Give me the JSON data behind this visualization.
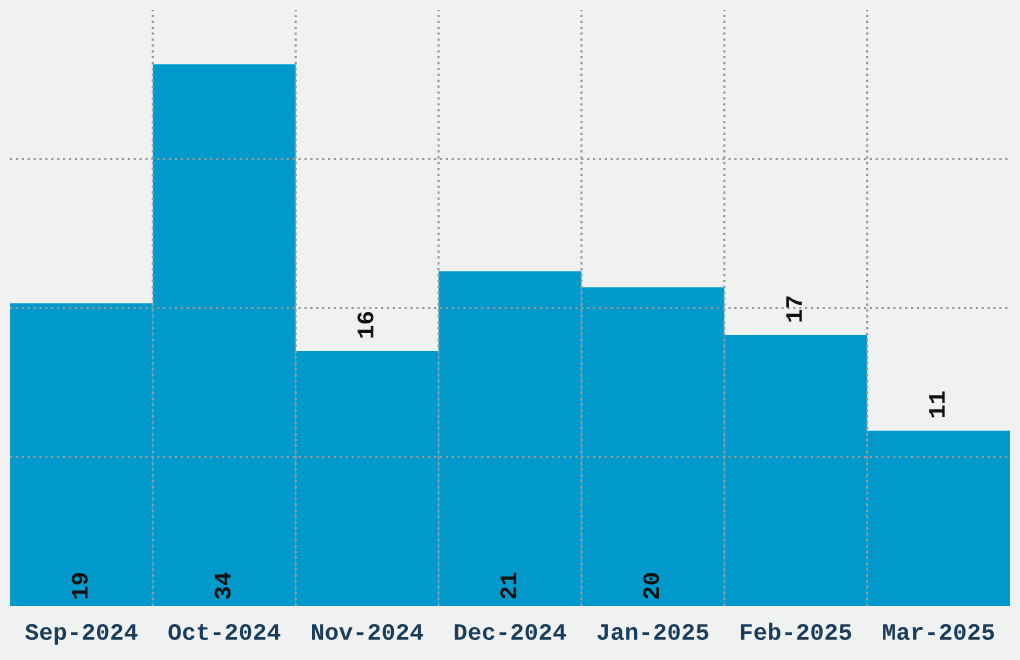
{
  "chart_data": {
    "type": "bar",
    "categories": [
      "Sep-2024",
      "Oct-2024",
      "Nov-2024",
      "Dec-2024",
      "Jan-2025",
      "Feb-2025",
      "Mar-2025"
    ],
    "values": [
      19,
      34,
      16,
      21,
      20,
      17,
      11
    ],
    "color": "#0099cc",
    "ylim": [
      0,
      37.4
    ],
    "yticks": [
      {
        "value": 9.35,
        "label": null
      },
      {
        "value": 18.7,
        "label": null
      },
      {
        "value": 28.05,
        "label": null
      }
    ],
    "tick_labels": "x",
    "grid": true,
    "data_labels": true
  }
}
